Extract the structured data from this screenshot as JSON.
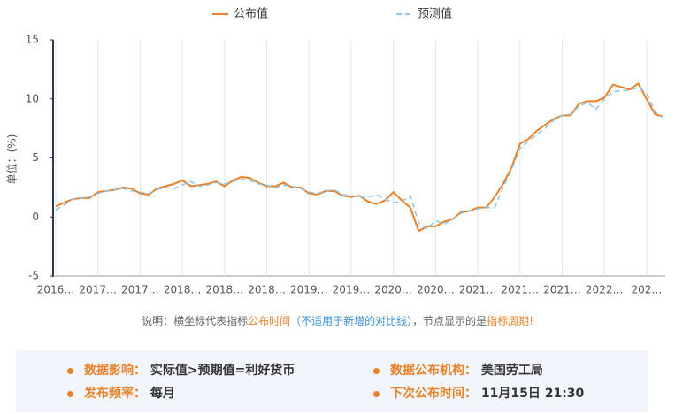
{
  "chart_data": {
    "type": "line",
    "y_label": "单位：(%)",
    "categories": [
      "2016…",
      null,
      null,
      null,
      null,
      "2017…",
      null,
      null,
      null,
      null,
      "2017…",
      null,
      null,
      null,
      null,
      "2018…",
      null,
      null,
      null,
      null,
      "2018…",
      null,
      null,
      null,
      null,
      "2018…",
      null,
      null,
      null,
      null,
      "2019…",
      null,
      null,
      null,
      null,
      "2019…",
      null,
      null,
      null,
      null,
      "2020…",
      null,
      null,
      null,
      null,
      "2020…",
      null,
      null,
      null,
      null,
      "2021…",
      null,
      null,
      null,
      null,
      "2021…",
      null,
      null,
      null,
      null,
      "2021…",
      null,
      null,
      null,
      null,
      "2022…",
      null,
      null,
      null,
      null,
      "202…",
      null,
      null
    ],
    "series": [
      {
        "name": "公布值",
        "color": "#e8822a",
        "dashed": false,
        "values": [
          0.9,
          1.2,
          1.5,
          1.6,
          1.6,
          2.1,
          2.2,
          2.3,
          2.5,
          2.4,
          2.0,
          1.9,
          2.4,
          2.6,
          2.8,
          3.1,
          2.6,
          2.7,
          2.8,
          3.0,
          2.6,
          3.1,
          3.4,
          3.3,
          2.9,
          2.6,
          2.6,
          2.9,
          2.5,
          2.5,
          2.0,
          1.9,
          2.2,
          2.2,
          1.8,
          1.7,
          1.8,
          1.3,
          1.1,
          1.4,
          2.1,
          1.4,
          0.8,
          -1.2,
          -0.8,
          -0.8,
          -0.4,
          -0.2,
          0.4,
          0.5,
          0.8,
          0.8,
          1.7,
          2.8,
          4.2,
          6.2,
          6.6,
          7.3,
          7.8,
          8.3,
          8.6,
          8.6,
          9.6,
          9.8,
          9.8,
          10.1,
          11.2,
          11.0,
          10.8,
          11.3,
          10.0,
          8.7,
          8.5
        ]
      },
      {
        "name": "预测值",
        "color": "#8fc3e8",
        "dashed": true,
        "values": [
          0.6,
          1.0,
          1.5,
          1.6,
          1.7,
          2.0,
          2.2,
          2.3,
          2.4,
          2.2,
          2.1,
          2.0,
          2.3,
          2.5,
          2.4,
          2.7,
          3.0,
          2.6,
          2.7,
          2.9,
          2.8,
          3.0,
          3.2,
          3.1,
          2.8,
          2.7,
          2.5,
          2.7,
          2.6,
          2.4,
          2.1,
          2.0,
          2.2,
          2.3,
          1.9,
          1.8,
          1.7,
          1.7,
          1.9,
          1.5,
          1.2,
          1.3,
          1.8,
          -0.5,
          -1.0,
          -0.3,
          -0.6,
          -0.2,
          0.3,
          0.5,
          0.7,
          0.8,
          0.8,
          2.5,
          4.0,
          5.8,
          6.4,
          7.0,
          7.5,
          8.2,
          8.6,
          8.7,
          9.4,
          9.7,
          9.1,
          10.0,
          10.6,
          10.7,
          10.7,
          11.0,
          10.5,
          8.9,
          8.4
        ]
      }
    ],
    "ylim": [
      -5,
      15
    ],
    "yticks": [
      -5,
      0,
      5,
      10,
      15
    ],
    "grid": true,
    "legend": "top"
  },
  "note": [
    "说明：横坐标代表指标",
    "公布时间",
    "（不适用于新增的对比线）",
    "，节点显示的是",
    "指标周期!"
  ],
  "info": [
    {
      "label": "数据影响：",
      "value": "实际值>预期值=利好货币"
    },
    {
      "label": "数据公布机构：",
      "value": "美国劳工局"
    },
    {
      "label": "发布频率：",
      "value": "每月"
    },
    {
      "label": "下次公布时间：",
      "value": "11月15日 21:30"
    }
  ]
}
